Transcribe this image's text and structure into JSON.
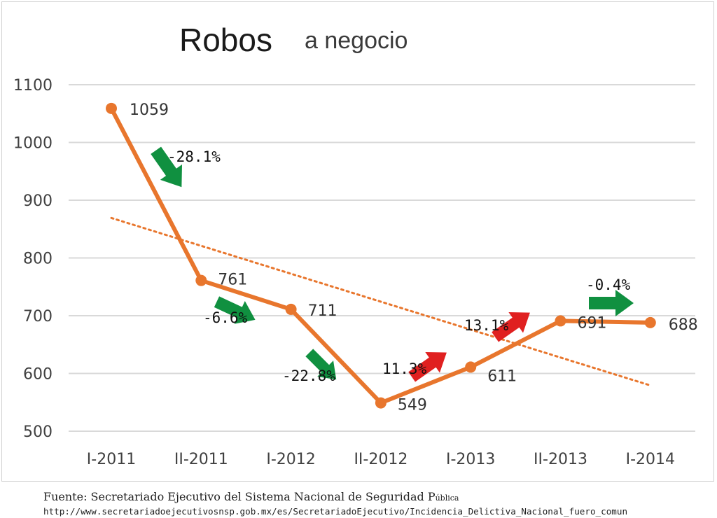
{
  "chart_data": {
    "type": "line",
    "title": "Robos",
    "subtitle": "a negocio",
    "categories": [
      "I-2011",
      "II-2011",
      "I-2012",
      "II-2012",
      "I-2013",
      "II-2013",
      "I-2014"
    ],
    "values": [
      1059,
      761,
      711,
      549,
      611,
      691,
      688
    ],
    "data_labels": [
      "1059",
      "761",
      "711",
      "549",
      "611",
      "691",
      "688"
    ],
    "ylim": [
      500,
      1100
    ],
    "yticks": [
      500,
      600,
      700,
      800,
      900,
      1000,
      1100
    ],
    "grid": true,
    "legend": "none",
    "trendline": {
      "type": "linear",
      "style": "dotted"
    },
    "annotations": [
      {
        "label": "-28.1%",
        "direction": "down",
        "color": "#109040"
      },
      {
        "label": "-6.6%",
        "direction": "down",
        "color": "#109040"
      },
      {
        "label": "-22.8%",
        "direction": "down",
        "color": "#109040"
      },
      {
        "label": "11.3%",
        "direction": "up",
        "color": "#e02020"
      },
      {
        "label": "13.1%",
        "direction": "up",
        "color": "#e02020"
      },
      {
        "label": "-0.4%",
        "direction": "flat",
        "color": "#109040"
      }
    ],
    "colors": {
      "series": "#e8762d",
      "trend": "#e8762d",
      "grid": "#d9d9d9",
      "decrease": "#109040",
      "increase": "#e02020"
    }
  },
  "footer": {
    "source_main": "Fuente: Secretariado Ejecutivo del Sistema Nacional de Seguridad P",
    "source_small": "ública",
    "url": "http://www.secretariadoejecutivosnsp.gob.mx/es/SecretariadoEjecutivo/Incidencia_Delictiva_Nacional_fuero_comun"
  }
}
